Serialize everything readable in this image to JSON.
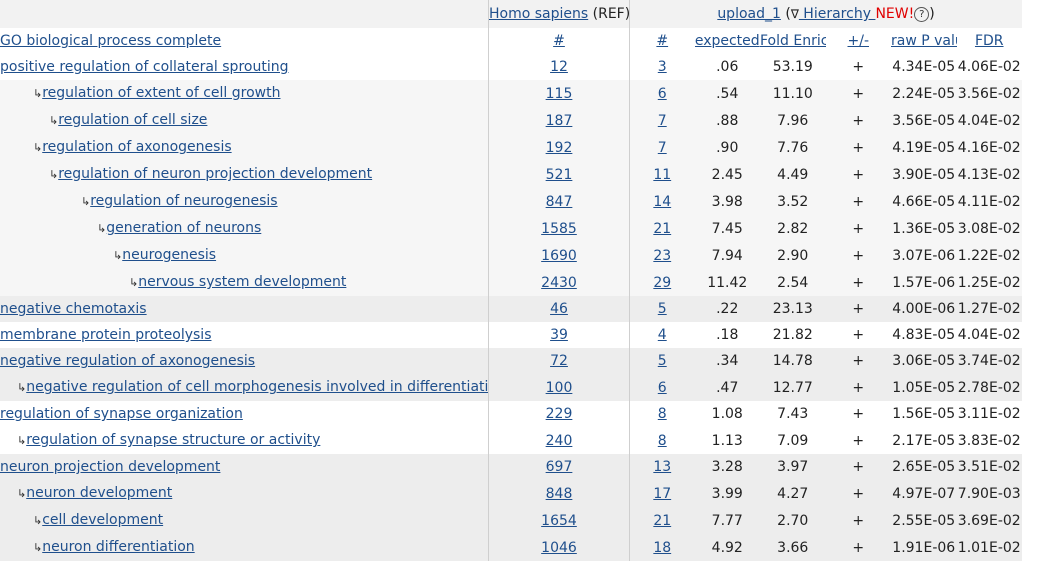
{
  "header": {
    "ref_link": "Homo sapiens",
    "ref_suffix": " (REF)",
    "upload_link": "upload_1",
    "upload_open": " (",
    "triangle": "∇",
    "hierarchy_link": " Hierarchy ",
    "new_label": "NEW!",
    "help_glyph": "?",
    "upload_close": ")"
  },
  "columns": {
    "term": "GO biological process complete",
    "ref_count": "#",
    "count": "#",
    "expected": "expected",
    "fold": "Fold Enrichment",
    "sign": "+/-",
    "raw_p": "raw P value",
    "fdr": "FDR"
  },
  "rows": [
    {
      "term": "positive regulation of collateral sprouting",
      "ref": "12",
      "count": "3",
      "expected": ".06",
      "fold": "53.19",
      "sign": "+",
      "raw_p": "4.34E-05",
      "fdr": "4.06E-02"
    },
    {
      "term": "regulation of extent of cell growth",
      "ref": "115",
      "count": "6",
      "expected": ".54",
      "fold": "11.10",
      "sign": "+",
      "raw_p": "2.24E-05",
      "fdr": "3.56E-02"
    },
    {
      "term": "regulation of cell size",
      "ref": "187",
      "count": "7",
      "expected": ".88",
      "fold": "7.96",
      "sign": "+",
      "raw_p": "3.56E-05",
      "fdr": "4.04E-02"
    },
    {
      "term": "regulation of axonogenesis",
      "ref": "192",
      "count": "7",
      "expected": ".90",
      "fold": "7.76",
      "sign": "+",
      "raw_p": "4.19E-05",
      "fdr": "4.16E-02"
    },
    {
      "term": "regulation of neuron projection development",
      "ref": "521",
      "count": "11",
      "expected": "2.45",
      "fold": "4.49",
      "sign": "+",
      "raw_p": "3.90E-05",
      "fdr": "4.13E-02"
    },
    {
      "term": "regulation of neurogenesis",
      "ref": "847",
      "count": "14",
      "expected": "3.98",
      "fold": "3.52",
      "sign": "+",
      "raw_p": "4.66E-05",
      "fdr": "4.11E-02"
    },
    {
      "term": "generation of neurons",
      "ref": "1585",
      "count": "21",
      "expected": "7.45",
      "fold": "2.82",
      "sign": "+",
      "raw_p": "1.36E-05",
      "fdr": "3.08E-02"
    },
    {
      "term": "neurogenesis",
      "ref": "1690",
      "count": "23",
      "expected": "7.94",
      "fold": "2.90",
      "sign": "+",
      "raw_p": "3.07E-06",
      "fdr": "1.22E-02"
    },
    {
      "term": "nervous system development",
      "ref": "2430",
      "count": "29",
      "expected": "11.42",
      "fold": "2.54",
      "sign": "+",
      "raw_p": "1.57E-06",
      "fdr": "1.25E-02"
    },
    {
      "term": "negative chemotaxis",
      "ref": "46",
      "count": "5",
      "expected": ".22",
      "fold": "23.13",
      "sign": "+",
      "raw_p": "4.00E-06",
      "fdr": "1.27E-02"
    },
    {
      "term": "membrane protein proteolysis",
      "ref": "39",
      "count": "4",
      "expected": ".18",
      "fold": "21.82",
      "sign": "+",
      "raw_p": "4.83E-05",
      "fdr": "4.04E-02"
    },
    {
      "term": "negative regulation of axonogenesis",
      "ref": "72",
      "count": "5",
      "expected": ".34",
      "fold": "14.78",
      "sign": "+",
      "raw_p": "3.06E-05",
      "fdr": "3.74E-02"
    },
    {
      "term": "negative regulation of cell morphogenesis involved in differentiation",
      "ref": "100",
      "count": "6",
      "expected": ".47",
      "fold": "12.77",
      "sign": "+",
      "raw_p": "1.05E-05",
      "fdr": "2.78E-02"
    },
    {
      "term": "regulation of synapse organization",
      "ref": "229",
      "count": "8",
      "expected": "1.08",
      "fold": "7.43",
      "sign": "+",
      "raw_p": "1.56E-05",
      "fdr": "3.11E-02"
    },
    {
      "term": "regulation of synapse structure or activity",
      "ref": "240",
      "count": "8",
      "expected": "1.13",
      "fold": "7.09",
      "sign": "+",
      "raw_p": "2.17E-05",
      "fdr": "3.83E-02"
    },
    {
      "term": "neuron projection development",
      "ref": "697",
      "count": "13",
      "expected": "3.28",
      "fold": "3.97",
      "sign": "+",
      "raw_p": "2.65E-05",
      "fdr": "3.51E-02"
    },
    {
      "term": "neuron development",
      "ref": "848",
      "count": "17",
      "expected": "3.99",
      "fold": "4.27",
      "sign": "+",
      "raw_p": "4.97E-07",
      "fdr": "7.90E-03"
    },
    {
      "term": "cell development",
      "ref": "1654",
      "count": "21",
      "expected": "7.77",
      "fold": "2.70",
      "sign": "+",
      "raw_p": "2.55E-05",
      "fdr": "3.69E-02"
    },
    {
      "term": "neuron differentiation",
      "ref": "1046",
      "count": "18",
      "expected": "4.92",
      "fold": "3.66",
      "sign": "+",
      "raw_p": "1.91E-06",
      "fdr": "1.01E-02"
    }
  ]
}
